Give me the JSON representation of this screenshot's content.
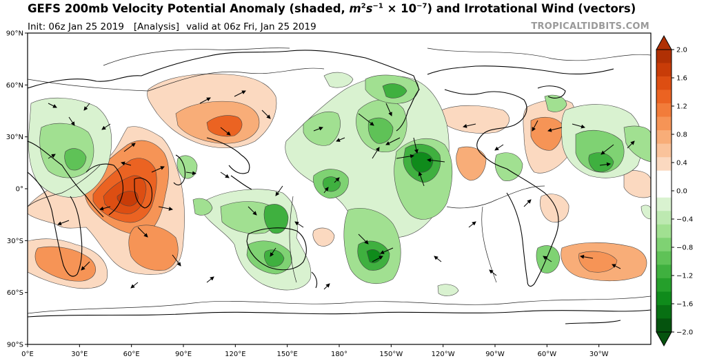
{
  "header": {
    "title_prefix": "GEFS 200mb Velocity Potential Anomaly (shaded, ",
    "title_unit_m": "m",
    "title_unit_m_exp": "2",
    "title_unit_s": "s",
    "title_unit_s_exp": "−1",
    "title_unit_times": " × 10",
    "title_unit_exp": "−7",
    "title_suffix": ") and Irrotational Wind (vectors)",
    "init": "Init: 06z Jan 25 2019",
    "run_type": "[Analysis]",
    "valid": "valid at 06z Fri, Jan 25 2019",
    "credit": "TROPICALTIDBITS.COM"
  },
  "axes": {
    "lat_labels": [
      "90°N",
      "60°N",
      "30°N",
      "0°",
      "30°S",
      "60°S",
      "90°S"
    ],
    "lon_labels": [
      "0°E",
      "30°E",
      "60°E",
      "90°E",
      "120°E",
      "150°E",
      "180°",
      "150°W",
      "120°W",
      "90°W",
      "60°W",
      "30°W"
    ]
  },
  "colorbar": {
    "labels": [
      "2.0",
      "1.6",
      "1.2",
      "0.8",
      "0.4",
      "0.0",
      "−0.4",
      "−0.8",
      "−1.2",
      "−1.6",
      "−2.0"
    ],
    "colors": [
      "#b03004",
      "#c83c08",
      "#dd4e12",
      "#eb6322",
      "#f27c3a",
      "#f69456",
      "#f8ad78",
      "#fac39b",
      "#fbd9c0",
      "#ffffff",
      "#ffffff",
      "#d9f2d0",
      "#bde9b1",
      "#a1e091",
      "#7fd273",
      "#5fc257",
      "#3fb03f",
      "#259f2b",
      "#0f8b1b",
      "#087013",
      "#05530e"
    ]
  },
  "colors": {
    "positive_anomaly": "#e85b1b",
    "negative_anomaly": "#3fb03f",
    "credit_gray": "#9a9a9a"
  }
}
